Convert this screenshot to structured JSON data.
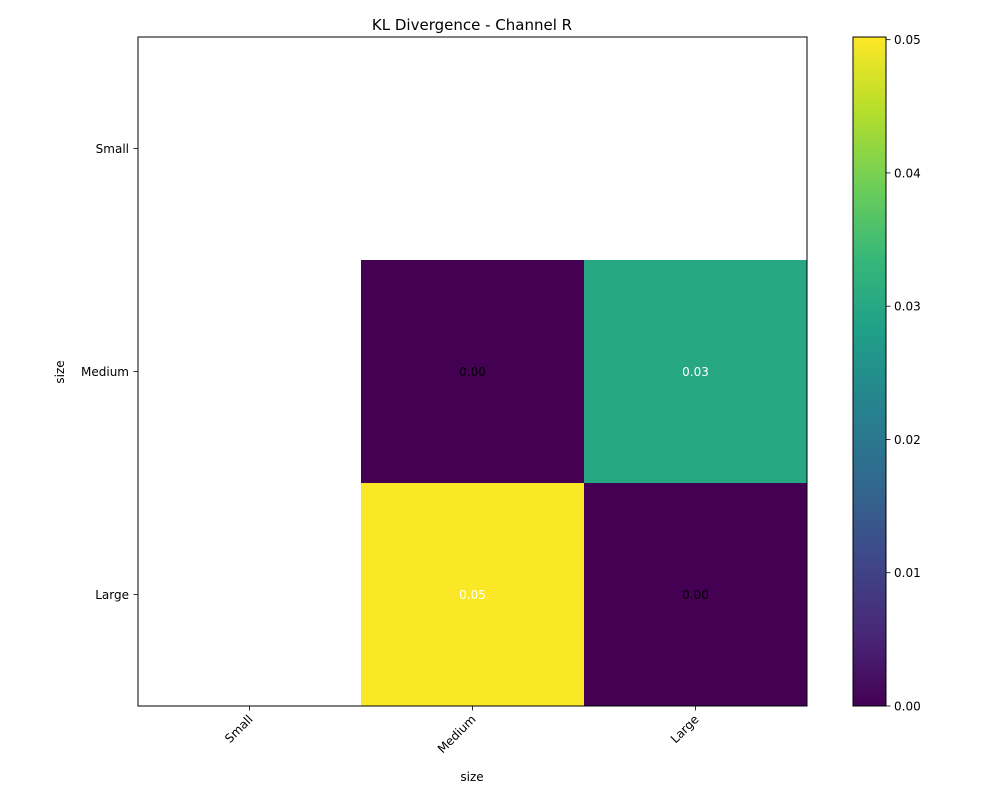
{
  "chart_data": {
    "type": "heatmap",
    "title": "KL Divergence - Channel R",
    "xlabel": "size",
    "ylabel": "size",
    "x_categories": [
      "Small",
      "Medium",
      "Large"
    ],
    "y_categories": [
      "Small",
      "Medium",
      "Large"
    ],
    "cells": [
      {
        "row": "Medium",
        "col": "Medium",
        "value": 0.0,
        "label": "0.00"
      },
      {
        "row": "Medium",
        "col": "Large",
        "value": 0.03,
        "label": "0.03"
      },
      {
        "row": "Large",
        "col": "Medium",
        "value": 0.05,
        "label": "0.05"
      },
      {
        "row": "Large",
        "col": "Large",
        "value": 0.0,
        "label": "0.00"
      }
    ],
    "missing_cells": [
      {
        "row": "Small",
        "col": "Small"
      },
      {
        "row": "Small",
        "col": "Medium"
      },
      {
        "row": "Small",
        "col": "Large"
      },
      {
        "row": "Medium",
        "col": "Small"
      },
      {
        "row": "Large",
        "col": "Small"
      }
    ],
    "colormap": "viridis",
    "colorbar": {
      "range": [
        0.0,
        0.0502
      ],
      "ticks": [
        0.0,
        0.01,
        0.02,
        0.03,
        0.04,
        0.05
      ],
      "tick_labels": [
        "0.00",
        "0.01",
        "0.02",
        "0.03",
        "0.04",
        "0.05"
      ]
    },
    "label_colors": {
      "dark_bg": "#ffffff",
      "light_bg": "#000000"
    },
    "grid": false
  }
}
